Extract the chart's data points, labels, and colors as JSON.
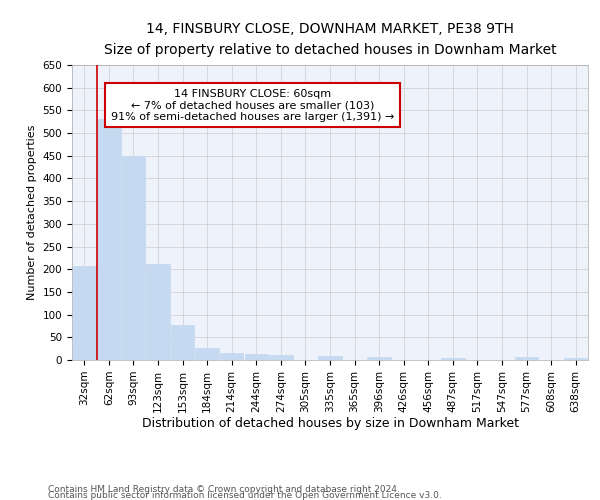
{
  "title": "14, FINSBURY CLOSE, DOWNHAM MARKET, PE38 9TH",
  "subtitle": "Size of property relative to detached houses in Downham Market",
  "xlabel": "Distribution of detached houses by size in Downham Market",
  "ylabel": "Number of detached properties",
  "categories": [
    "32sqm",
    "62sqm",
    "93sqm",
    "123sqm",
    "153sqm",
    "184sqm",
    "214sqm",
    "244sqm",
    "274sqm",
    "305sqm",
    "335sqm",
    "365sqm",
    "396sqm",
    "426sqm",
    "456sqm",
    "487sqm",
    "517sqm",
    "547sqm",
    "577sqm",
    "608sqm",
    "638sqm"
  ],
  "values": [
    208,
    530,
    450,
    212,
    78,
    27,
    16,
    13,
    10,
    0,
    9,
    0,
    7,
    0,
    0,
    5,
    0,
    0,
    6,
    0,
    5
  ],
  "bar_color": "#c5d9f1",
  "bar_edgecolor": "#c5d9f1",
  "bar_linewidth": 0.5,
  "vline_color": "#cc0000",
  "annotation_text": "14 FINSBURY CLOSE: 60sqm\n← 7% of detached houses are smaller (103)\n91% of semi-detached houses are larger (1,391) →",
  "annotation_box_color": "#cc0000",
  "ylim": [
    0,
    650
  ],
  "yticks": [
    0,
    50,
    100,
    150,
    200,
    250,
    300,
    350,
    400,
    450,
    500,
    550,
    600,
    650
  ],
  "grid_color": "#cccccc",
  "background_color": "#eef2fb",
  "footer1": "Contains HM Land Registry data © Crown copyright and database right 2024.",
  "footer2": "Contains public sector information licensed under the Open Government Licence v3.0.",
  "title_fontsize": 10,
  "subtitle_fontsize": 9,
  "xlabel_fontsize": 9,
  "ylabel_fontsize": 8,
  "tick_fontsize": 7.5,
  "annotation_fontsize": 8,
  "footer_fontsize": 6.5
}
